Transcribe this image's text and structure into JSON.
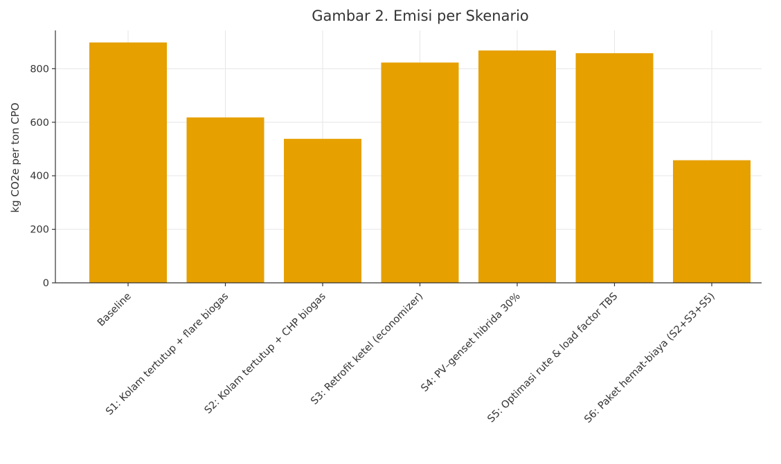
{
  "chart_data": {
    "type": "bar",
    "title": "Gambar 2. Emisi per Skenario",
    "xlabel": "",
    "ylabel": "kg CO2e per ton CPO",
    "categories": [
      "Baseline",
      "S1: Kolam tertutup + flare biogas",
      "S2: Kolam tertutup + CHP biogas",
      "S3: Retrofit ketel (economizer)",
      "S4: PV–genset hibrida 30%",
      "S5: Optimasi rute & load factor TBS",
      "S6: Paket hemat-biaya (S2+S3+S5)"
    ],
    "values": [
      898,
      618,
      538,
      823,
      868,
      858,
      458
    ],
    "ylim": [
      0,
      943
    ],
    "yticks": [
      0,
      200,
      400,
      600,
      800
    ],
    "grid": true,
    "bar_color": "#e6a000"
  }
}
